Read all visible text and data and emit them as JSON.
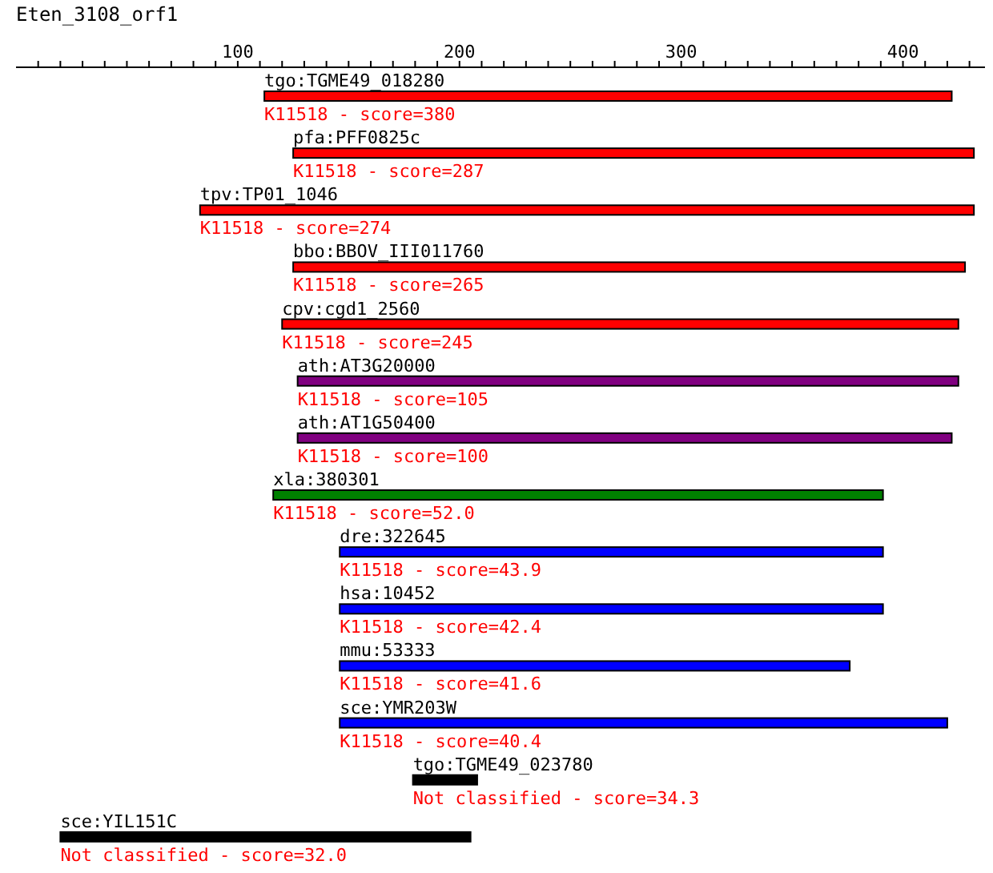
{
  "chart_data": {
    "type": "bar",
    "orientation": "horizontal",
    "title": "Eten_3108_orf1",
    "categories": [
      "tgo:TGME49_018280",
      "pfa:PFF0825c",
      "tpv:TP01_1046",
      "bbo:BBOV_III011760",
      "cpv:cgd1_2560",
      "ath:AT3G20000",
      "ath:AT1G50400",
      "xla:380301",
      "dre:322645",
      "hsa:10452",
      "mmu:53333",
      "sce:YMR203W",
      "tgo:TGME49_023780",
      "sce:YIL151C"
    ],
    "base": [
      112,
      125,
      83,
      125,
      120,
      127,
      127,
      116,
      146,
      146,
      146,
      146,
      179,
      20
    ],
    "values": [
      310,
      307,
      349,
      303,
      305,
      298,
      295,
      275,
      245,
      245,
      230,
      274,
      29,
      185
    ],
    "annotations": [
      {
        "text": "K11518 - score=380",
        "x": 112,
        "y": "tgo:TGME49_018280"
      },
      {
        "text": "K11518 - score=287",
        "x": 125,
        "y": "pfa:PFF0825c"
      },
      {
        "text": "K11518 - score=274",
        "x": 83,
        "y": "tpv:TP01_1046"
      },
      {
        "text": "K11518 - score=265",
        "x": 125,
        "y": "bbo:BBOV_III011760"
      },
      {
        "text": "K11518 - score=245",
        "x": 120,
        "y": "cpv:cgd1_2560"
      },
      {
        "text": "K11518 - score=105",
        "x": 127,
        "y": "ath:AT3G20000"
      },
      {
        "text": "K11518 - score=100",
        "x": 127,
        "y": "ath:AT1G50400"
      },
      {
        "text": "K11518 - score=52.0",
        "x": 116,
        "y": "xla:380301"
      },
      {
        "text": "K11518 - score=43.9",
        "x": 146,
        "y": "dre:322645"
      },
      {
        "text": "K11518 - score=42.4",
        "x": 146,
        "y": "hsa:10452"
      },
      {
        "text": "K11518 - score=41.6",
        "x": 146,
        "y": "mmu:53333"
      },
      {
        "text": "K11518 - score=40.4",
        "x": 146,
        "y": "sce:YMR203W"
      },
      {
        "text": "Not classified - score=34.3",
        "x": 179,
        "y": "tgo:TGME49_023780"
      },
      {
        "text": "Not classified - score=32.0",
        "x": 20,
        "y": "sce:YIL151C"
      }
    ],
    "colors": [
      "#ff0000",
      "#ff0000",
      "#ff0000",
      "#ff0000",
      "#ff0000",
      "#800080",
      "#800080",
      "#008000",
      "#0000ff",
      "#0000ff",
      "#0000ff",
      "#0000ff",
      "#000000",
      "#000000"
    ],
    "xlim": [
      0,
      437
    ],
    "xticks": [
      {
        "value": 10,
        "label": null
      },
      {
        "value": 20,
        "label": null
      },
      {
        "value": 30,
        "label": null
      },
      {
        "value": 40,
        "label": null
      },
      {
        "value": 50,
        "label": null
      },
      {
        "value": 60,
        "label": null
      },
      {
        "value": 70,
        "label": null
      },
      {
        "value": 80,
        "label": null
      },
      {
        "value": 90,
        "label": null
      },
      100,
      {
        "value": 110,
        "label": null
      },
      {
        "value": 120,
        "label": null
      },
      {
        "value": 130,
        "label": null
      },
      {
        "value": 140,
        "label": null
      },
      {
        "value": 150,
        "label": null
      },
      {
        "value": 160,
        "label": null
      },
      {
        "value": 170,
        "label": null
      },
      {
        "value": 180,
        "label": null
      },
      {
        "value": 190,
        "label": null
      },
      200,
      {
        "value": 210,
        "label": null
      },
      {
        "value": 220,
        "label": null
      },
      {
        "value": 230,
        "label": null
      },
      {
        "value": 240,
        "label": null
      },
      {
        "value": 250,
        "label": null
      },
      {
        "value": 260,
        "label": null
      },
      {
        "value": 270,
        "label": null
      },
      {
        "value": 280,
        "label": null
      },
      {
        "value": 290,
        "label": null
      },
      300,
      {
        "value": 310,
        "label": null
      },
      {
        "value": 320,
        "label": null
      },
      {
        "value": 330,
        "label": null
      },
      {
        "value": 340,
        "label": null
      },
      {
        "value": 350,
        "label": null
      },
      {
        "value": 360,
        "label": null
      },
      {
        "value": 370,
        "label": null
      },
      {
        "value": 380,
        "label": null
      },
      {
        "value": 390,
        "label": null
      },
      400,
      {
        "value": 410,
        "label": null
      },
      {
        "value": 420,
        "label": null
      },
      {
        "value": 430,
        "label": null
      }
    ],
    "grid": false,
    "legend": false
  }
}
